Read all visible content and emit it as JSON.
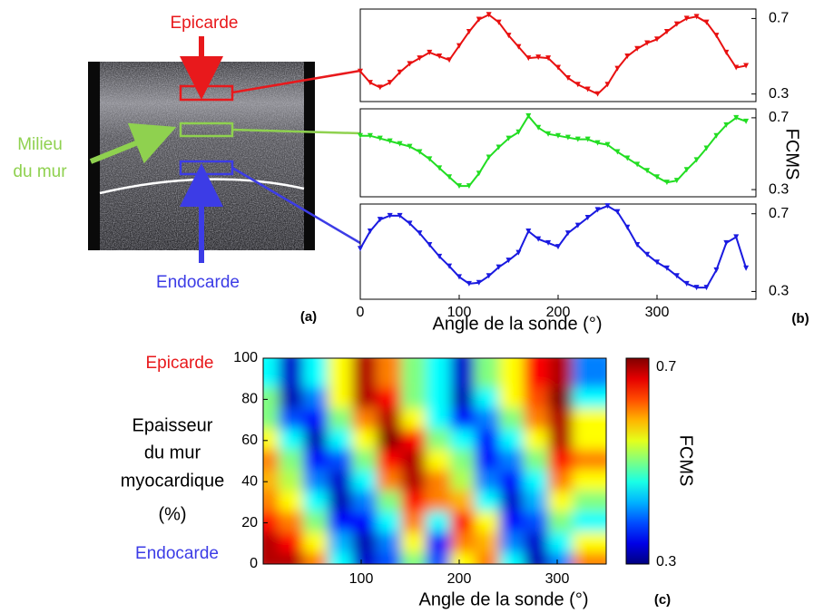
{
  "chart_data": [
    {
      "type": "image",
      "panel_label": "(a)",
      "annotations": [
        {
          "text": "Epicarde",
          "color": "#e8191c"
        },
        {
          "text": "Milieu",
          "color": "#8fd14f"
        },
        {
          "text": "du mur",
          "color": "#8fd14f"
        },
        {
          "text": "Endocarde",
          "color": "#3c3ce6"
        }
      ]
    },
    {
      "type": "line",
      "panel_label": "(b)",
      "x_label": "Angle de la sonde (°)",
      "y_label": "FCMS",
      "x": [
        0,
        10,
        20,
        30,
        40,
        50,
        60,
        70,
        80,
        90,
        100,
        110,
        120,
        130,
        140,
        150,
        160,
        170,
        180,
        190,
        200,
        210,
        220,
        230,
        240,
        250,
        260,
        270,
        280,
        290,
        300,
        310,
        320,
        330,
        340,
        350,
        360,
        370,
        380,
        390
      ],
      "xlim": [
        0,
        400
      ],
      "xticks": [
        0,
        100,
        200,
        300
      ],
      "ylim": [
        0.26,
        0.75
      ],
      "yticks": [
        0.3,
        0.7
      ],
      "series": [
        {
          "color": "#e81010",
          "values": [
            0.42,
            0.36,
            0.335,
            0.36,
            0.415,
            0.46,
            0.49,
            0.52,
            0.5,
            0.48,
            0.555,
            0.63,
            0.695,
            0.72,
            0.68,
            0.61,
            0.55,
            0.49,
            0.495,
            0.49,
            0.44,
            0.385,
            0.35,
            0.325,
            0.3,
            0.35,
            0.435,
            0.5,
            0.54,
            0.57,
            0.59,
            0.63,
            0.67,
            0.7,
            0.71,
            0.68,
            0.61,
            0.52,
            0.44,
            0.45
          ]
        },
        {
          "color": "#22dd22",
          "values": [
            0.6,
            0.6,
            0.585,
            0.57,
            0.555,
            0.54,
            0.51,
            0.47,
            0.42,
            0.37,
            0.32,
            0.32,
            0.39,
            0.48,
            0.535,
            0.585,
            0.62,
            0.71,
            0.645,
            0.61,
            0.6,
            0.59,
            0.58,
            0.58,
            0.56,
            0.55,
            0.51,
            0.475,
            0.44,
            0.405,
            0.37,
            0.34,
            0.35,
            0.41,
            0.465,
            0.53,
            0.6,
            0.66,
            0.7,
            0.68
          ]
        },
        {
          "color": "#1a1ae0",
          "values": [
            0.52,
            0.61,
            0.67,
            0.69,
            0.69,
            0.65,
            0.6,
            0.54,
            0.48,
            0.43,
            0.375,
            0.34,
            0.345,
            0.38,
            0.425,
            0.46,
            0.5,
            0.61,
            0.57,
            0.55,
            0.53,
            0.6,
            0.64,
            0.68,
            0.72,
            0.74,
            0.71,
            0.63,
            0.54,
            0.49,
            0.45,
            0.42,
            0.38,
            0.34,
            0.32,
            0.32,
            0.41,
            0.55,
            0.58,
            0.42
          ]
        }
      ]
    },
    {
      "type": "heatmap",
      "panel_label": "(c)",
      "x_label": "Angle de la sonde (°)",
      "y_label": [
        "Epaisseur",
        "du mur",
        "myocardique",
        "(%)"
      ],
      "y_annotations": [
        {
          "text": "Epicarde",
          "color": "#e8191c"
        },
        {
          "text": "Endocarde",
          "color": "#3c3ce6"
        }
      ],
      "colormap": "jet",
      "x": [
        12.5,
        37.5,
        62.5,
        87.5,
        112.5,
        137.5,
        162.5,
        187.5,
        212.5,
        237.5,
        262.5,
        287.5,
        312.5,
        337.5
      ],
      "y": [
        5,
        15,
        25,
        35,
        45,
        55,
        65,
        75,
        85,
        95
      ],
      "z": [
        [
          0.68,
          0.68,
          0.6,
          0.45,
          0.33,
          0.38,
          0.5,
          0.38,
          0.55,
          0.6,
          0.45,
          0.32,
          0.4,
          0.6
        ],
        [
          0.68,
          0.65,
          0.55,
          0.42,
          0.32,
          0.4,
          0.55,
          0.35,
          0.6,
          0.58,
          0.4,
          0.33,
          0.45,
          0.55
        ],
        [
          0.65,
          0.6,
          0.5,
          0.35,
          0.35,
          0.45,
          0.6,
          0.45,
          0.65,
          0.55,
          0.35,
          0.38,
          0.5,
          0.45
        ],
        [
          0.6,
          0.55,
          0.45,
          0.32,
          0.4,
          0.5,
          0.65,
          0.6,
          0.58,
          0.45,
          0.33,
          0.42,
          0.55,
          0.5
        ],
        [
          0.58,
          0.52,
          0.4,
          0.33,
          0.45,
          0.6,
          0.68,
          0.6,
          0.52,
          0.4,
          0.35,
          0.45,
          0.6,
          0.55
        ],
        [
          0.6,
          0.5,
          0.35,
          0.38,
          0.5,
          0.65,
          0.68,
          0.55,
          0.5,
          0.35,
          0.4,
          0.5,
          0.65,
          0.6
        ],
        [
          0.55,
          0.45,
          0.32,
          0.45,
          0.55,
          0.7,
          0.65,
          0.5,
          0.45,
          0.35,
          0.45,
          0.55,
          0.68,
          0.55
        ],
        [
          0.5,
          0.38,
          0.35,
          0.5,
          0.6,
          0.68,
          0.55,
          0.45,
          0.35,
          0.4,
          0.5,
          0.6,
          0.68,
          0.55
        ],
        [
          0.5,
          0.32,
          0.4,
          0.55,
          0.68,
          0.65,
          0.5,
          0.45,
          0.32,
          0.45,
          0.55,
          0.62,
          0.7,
          0.45
        ],
        [
          0.45,
          0.33,
          0.45,
          0.55,
          0.68,
          0.6,
          0.5,
          0.45,
          0.33,
          0.5,
          0.55,
          0.65,
          0.68,
          0.4
        ]
      ],
      "xlim": [
        0,
        350
      ],
      "xticks": [
        100,
        200,
        300
      ],
      "ylim": [
        0,
        100
      ],
      "yticks": [
        0,
        20,
        40,
        60,
        80,
        100
      ],
      "colorbar": {
        "label": "FCMS",
        "lim": [
          0.3,
          0.7
        ],
        "ticks": [
          0.3,
          0.7
        ]
      }
    }
  ]
}
